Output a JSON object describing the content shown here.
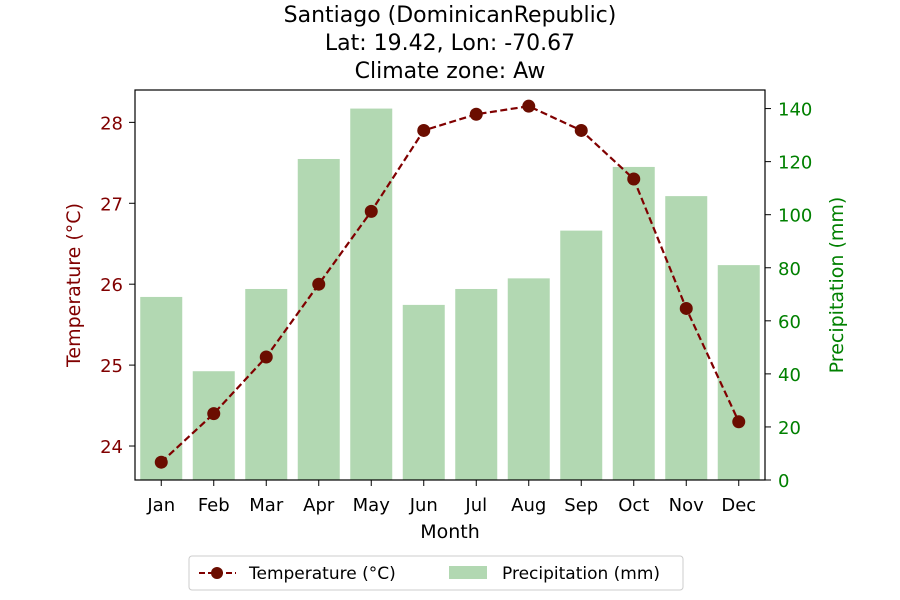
{
  "chart_data": {
    "type": "bar+line",
    "title_lines": [
      "Santiago (DominicanRepublic)",
      "Lat: 19.42, Lon: -70.67",
      "Climate zone: Aw"
    ],
    "categories": [
      "Jan",
      "Feb",
      "Mar",
      "Apr",
      "May",
      "Jun",
      "Jul",
      "Aug",
      "Sep",
      "Oct",
      "Nov",
      "Dec"
    ],
    "xlabel": "Month",
    "temperature": {
      "name": "Temperature (°C)",
      "axis_label": "Temperature (°C)",
      "values": [
        23.8,
        24.4,
        25.1,
        26.0,
        26.9,
        27.9,
        28.1,
        28.2,
        27.9,
        27.3,
        25.7,
        24.3
      ],
      "ylim": [
        23.58,
        28.4
      ],
      "ticks": [
        24,
        25,
        26,
        27,
        28
      ],
      "color": "#800000",
      "style": "dashed line with circle markers"
    },
    "precipitation": {
      "name": "Precipitation (mm)",
      "axis_label": "Precipitation (mm)",
      "values": [
        69,
        41,
        72,
        121,
        140,
        66,
        72,
        76,
        94,
        118,
        107,
        81
      ],
      "ylim": [
        0,
        147
      ],
      "ticks": [
        0,
        20,
        40,
        60,
        80,
        100,
        120,
        140
      ],
      "color": "#b2d8b2",
      "axis_color": "#008000"
    },
    "grid": false,
    "legend_placement": "bottom-center"
  }
}
